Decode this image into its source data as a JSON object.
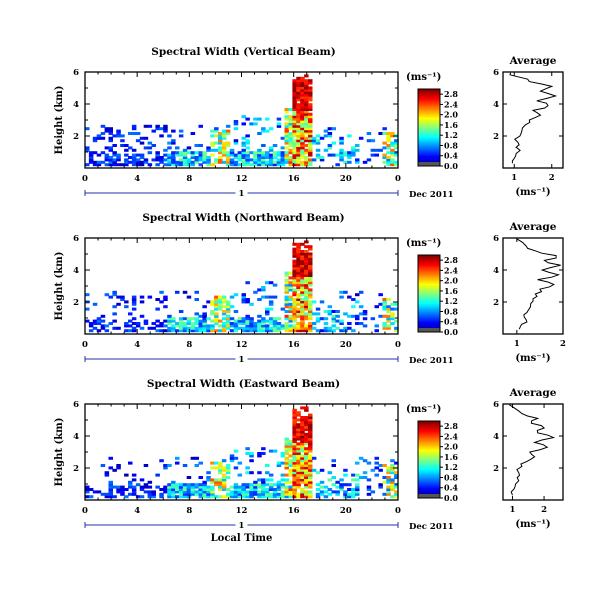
{
  "chart_data": [
    {
      "type": "heatmap",
      "title": "Spectral Width (Vertical Beam)",
      "ylabel": "Height (km)",
      "xlabel": "",
      "x_ticks": [
        "0",
        "4",
        "8",
        "12",
        "16",
        "20",
        "0"
      ],
      "y_ticks": [
        "2",
        "4",
        "6"
      ],
      "xlim": [
        0,
        24
      ],
      "ylim": [
        0,
        6
      ],
      "date_marker": "1",
      "date_label": "Dec 2011",
      "colorbar_unit": "(ms⁻¹)",
      "colorbar_ticks": [
        "0.0",
        "0.4",
        "0.8",
        "1.2",
        "1.6",
        "2.0",
        "2.4",
        "2.8"
      ],
      "colorbar_range": [
        0,
        3.0
      ],
      "average_profile": {
        "title": "Average",
        "xlabel": "(ms⁻¹)",
        "x_ticks": [
          "1",
          "2"
        ],
        "y_ticks": [
          "2",
          "4",
          "6"
        ],
        "xlim": [
          0.7,
          2.3
        ],
        "points": [
          [
            0.95,
            0.3
          ],
          [
            1.0,
            0.6
          ],
          [
            1.05,
            0.9
          ],
          [
            1.05,
            1.3
          ],
          [
            1.1,
            1.6
          ],
          [
            1.15,
            2.0
          ],
          [
            1.2,
            2.3
          ],
          [
            1.3,
            2.7
          ],
          [
            1.4,
            3.0
          ],
          [
            1.7,
            3.3
          ],
          [
            1.5,
            3.6
          ],
          [
            1.9,
            3.9
          ],
          [
            1.6,
            4.2
          ],
          [
            2.1,
            4.5
          ],
          [
            1.7,
            4.8
          ],
          [
            2.0,
            5.1
          ],
          [
            1.4,
            5.4
          ],
          [
            1.1,
            5.7
          ],
          [
            0.9,
            5.95
          ]
        ]
      }
    },
    {
      "type": "heatmap",
      "title": "Spectral Width (Northward Beam)",
      "ylabel": "Height (km)",
      "xlabel": "",
      "x_ticks": [
        "0",
        "4",
        "8",
        "12",
        "16",
        "20",
        "0"
      ],
      "y_ticks": [
        "2",
        "4",
        "6"
      ],
      "xlim": [
        0,
        24
      ],
      "ylim": [
        0,
        6
      ],
      "date_marker": "1",
      "date_label": "Dec 2011",
      "colorbar_unit": "(ms⁻¹)",
      "colorbar_ticks": [
        "0.0",
        "0.4",
        "0.8",
        "1.2",
        "1.6",
        "2.0",
        "2.4",
        "2.8"
      ],
      "colorbar_range": [
        0,
        3.0
      ],
      "average_profile": {
        "title": "Average",
        "xlabel": "(ms⁻¹)",
        "x_ticks": [
          "1",
          "2"
        ],
        "y_ticks": [
          "2",
          "4",
          "6"
        ],
        "xlim": [
          0.7,
          2.0
        ],
        "points": [
          [
            1.05,
            0.3
          ],
          [
            1.1,
            0.6
          ],
          [
            1.2,
            0.9
          ],
          [
            1.15,
            1.2
          ],
          [
            1.25,
            1.5
          ],
          [
            1.3,
            1.9
          ],
          [
            1.35,
            2.2
          ],
          [
            1.4,
            2.5
          ],
          [
            1.5,
            2.8
          ],
          [
            1.8,
            3.1
          ],
          [
            1.45,
            3.4
          ],
          [
            1.9,
            3.7
          ],
          [
            1.55,
            4.0
          ],
          [
            1.95,
            4.3
          ],
          [
            1.6,
            4.6
          ],
          [
            1.85,
            4.9
          ],
          [
            1.4,
            5.2
          ],
          [
            1.2,
            5.5
          ],
          [
            1.0,
            5.95
          ]
        ]
      }
    },
    {
      "type": "heatmap",
      "title": "Spectral Width (Eastward Beam)",
      "ylabel": "Height (km)",
      "xlabel": "Local Time",
      "x_ticks": [
        "0",
        "4",
        "8",
        "12",
        "16",
        "20",
        "0"
      ],
      "y_ticks": [
        "2",
        "4",
        "6"
      ],
      "xlim": [
        0,
        24
      ],
      "ylim": [
        0,
        6
      ],
      "date_marker": "1",
      "date_label": "Dec 2011",
      "colorbar_unit": "(ms⁻¹)",
      "colorbar_ticks": [
        "0.0",
        "0.4",
        "0.8",
        "1.2",
        "1.6",
        "2.0",
        "2.4",
        "2.8"
      ],
      "colorbar_range": [
        0,
        3.0
      ],
      "average_profile": {
        "title": "Average",
        "xlabel": "(ms⁻¹)",
        "x_ticks": [
          "1",
          "2"
        ],
        "y_ticks": [
          "2",
          "4",
          "6"
        ],
        "xlim": [
          0.7,
          2.6
        ],
        "points": [
          [
            1.0,
            0.3
          ],
          [
            1.05,
            0.7
          ],
          [
            1.1,
            1.0
          ],
          [
            1.15,
            1.4
          ],
          [
            1.2,
            1.7
          ],
          [
            1.3,
            2.1
          ],
          [
            1.45,
            2.4
          ],
          [
            1.7,
            2.7
          ],
          [
            1.55,
            3.0
          ],
          [
            2.1,
            3.3
          ],
          [
            1.7,
            3.6
          ],
          [
            2.3,
            3.9
          ],
          [
            1.8,
            4.2
          ],
          [
            2.0,
            4.5
          ],
          [
            1.6,
            4.8
          ],
          [
            1.8,
            5.1
          ],
          [
            1.3,
            5.4
          ],
          [
            1.1,
            5.7
          ],
          [
            0.9,
            5.95
          ]
        ]
      }
    }
  ]
}
